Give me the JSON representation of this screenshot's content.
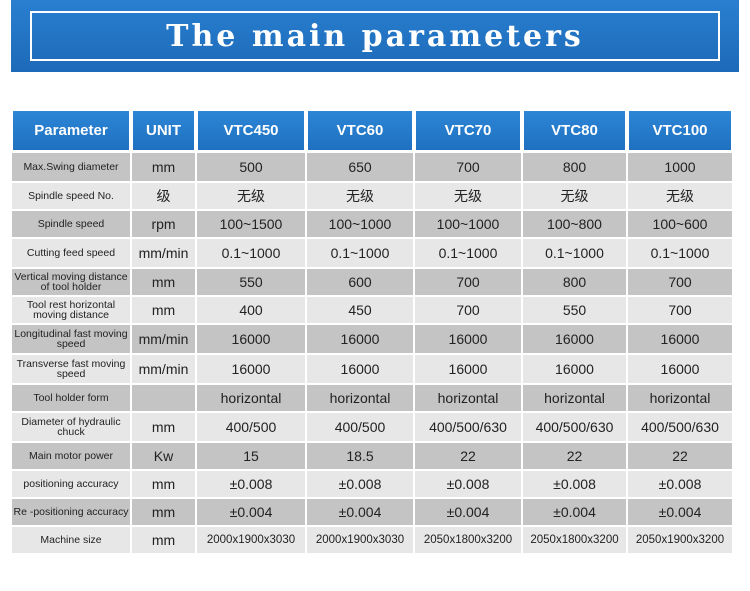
{
  "title": "The main parameters",
  "columns": [
    "Parameter",
    "UNIT",
    "VTC450",
    "VTC60",
    "VTC70",
    "VTC80",
    "VTC100"
  ],
  "rows": [
    {
      "name": "Max.Swing diameter",
      "unit": "mm",
      "values": [
        "500",
        "650",
        "700",
        "800",
        "1000"
      ]
    },
    {
      "name": "Spindle speed No.",
      "unit": "级",
      "values": [
        "无级",
        "无级",
        "无级",
        "无级",
        "无级"
      ]
    },
    {
      "name": "Spindle speed",
      "unit": "rpm",
      "values": [
        "100~1500",
        "100~1000",
        "100~1000",
        "100~800",
        "100~600"
      ]
    },
    {
      "name": "Cutting feed speed",
      "unit": "mm/min",
      "values": [
        "0.1~1000",
        "0.1~1000",
        "0.1~1000",
        "0.1~1000",
        "0.1~1000"
      ]
    },
    {
      "name": "Vertical moving distance of tool holder",
      "unit": "mm",
      "values": [
        "550",
        "600",
        "700",
        "800",
        "700"
      ]
    },
    {
      "name": "Tool rest horizontal moving distance",
      "unit": "mm",
      "values": [
        "400",
        "450",
        "700",
        "550",
        "700"
      ]
    },
    {
      "name": "Longitudinal fast moving speed",
      "unit": "mm/min",
      "values": [
        "16000",
        "16000",
        "16000",
        "16000",
        "16000"
      ]
    },
    {
      "name": "Transverse fast moving speed",
      "unit": "mm/min",
      "values": [
        "16000",
        "16000",
        "16000",
        "16000",
        "16000"
      ]
    },
    {
      "name": "Tool holder form",
      "unit": "",
      "values": [
        "horizontal",
        "horizontal",
        "horizontal",
        "horizontal",
        "horizontal"
      ]
    },
    {
      "name": "Diameter of hydraulic chuck",
      "unit": "mm",
      "values": [
        "400/500",
        "400/500",
        "400/500/630",
        "400/500/630",
        "400/500/630"
      ]
    },
    {
      "name": "Main motor power",
      "unit": "Kw",
      "values": [
        "15",
        "18.5",
        "22",
        "22",
        "22"
      ]
    },
    {
      "name": "positioning accuracy",
      "unit": "mm",
      "values": [
        "±0.008",
        "±0.008",
        "±0.008",
        "±0.008",
        "±0.008"
      ]
    },
    {
      "name": "Re -positioning accuracy",
      "unit": "mm",
      "values": [
        "±0.004",
        "±0.004",
        "±0.004",
        "±0.004",
        "±0.004"
      ]
    },
    {
      "name": "Machine size",
      "unit": "mm",
      "values": [
        "2000x1900x3030",
        "2000x1900x3030",
        "2050x1800x3200",
        "2050x1800x3200",
        "2050x1900x3200"
      ]
    }
  ]
}
